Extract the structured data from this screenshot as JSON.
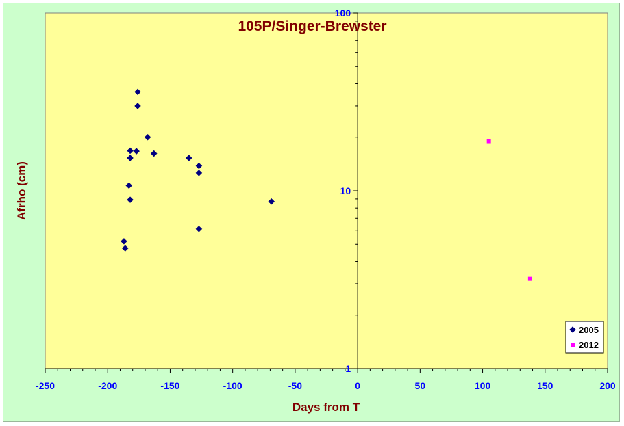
{
  "chart_data": {
    "type": "scatter",
    "title": "105P/Singer-Brewster",
    "xlabel": "Days from T",
    "ylabel": "Afrho (cm)",
    "xlim": [
      -250,
      200
    ],
    "ylim": [
      1,
      100
    ],
    "yscale": "log",
    "x_ticks": [
      "-250",
      "-200",
      "-150",
      "-100",
      "-50",
      "0",
      "50",
      "100",
      "150",
      "200"
    ],
    "x_tick_values": [
      -250,
      -200,
      -150,
      -100,
      -50,
      0,
      50,
      100,
      150,
      200
    ],
    "y_ticks": [
      "1",
      "10",
      "100"
    ],
    "y_tick_values": [
      1,
      10,
      100
    ],
    "grid": false,
    "legend_position": "bottom-right",
    "colors": {
      "plot_bg": "#ffff99",
      "chart_bg": "#ccffcc",
      "series_2005": "#000080",
      "series_2012": "#ff00ff"
    },
    "series": [
      {
        "name": "2005",
        "marker": "diamond",
        "color": "#000080",
        "x": [
          -176,
          -176,
          -168,
          -182,
          -177,
          -163,
          -182,
          -135,
          -127,
          -127,
          -183,
          -182,
          -69,
          -127,
          -187,
          -186
        ],
        "y": [
          36.0,
          30.0,
          20.0,
          16.8,
          16.7,
          16.2,
          15.3,
          15.3,
          13.8,
          12.6,
          10.7,
          8.9,
          8.7,
          6.1,
          5.2,
          4.75
        ]
      },
      {
        "name": "2012",
        "marker": "square",
        "color": "#ff00ff",
        "x": [
          105,
          138
        ],
        "y": [
          19.0,
          3.2
        ]
      }
    ]
  }
}
